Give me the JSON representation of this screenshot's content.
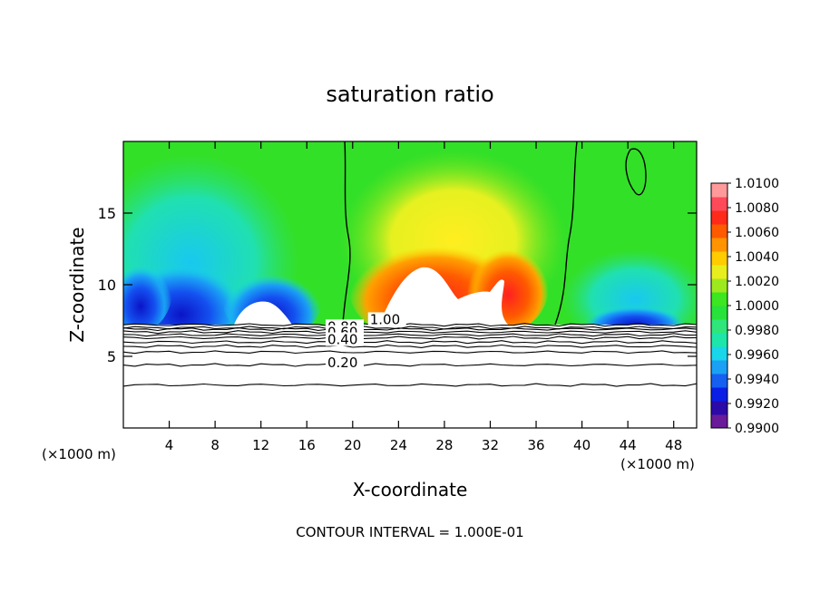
{
  "chart_data": {
    "type": "heatmap",
    "title": "saturation ratio",
    "xlabel": "X-coordinate",
    "ylabel": "Z-coordinate",
    "x_unit_left": "(×1000 m)",
    "x_unit_right": "(×1000 m)",
    "footer": "CONTOUR INTERVAL = 1.000E-01",
    "xlim": [
      0,
      50
    ],
    "ylim": [
      0,
      20
    ],
    "x_ticks": [
      4,
      8,
      12,
      16,
      20,
      24,
      28,
      32,
      36,
      40,
      44,
      48
    ],
    "y_ticks": [
      5,
      10,
      15
    ],
    "grid": false,
    "colorbar": {
      "placement": "right",
      "min": 0.99,
      "max": 1.01,
      "labels": [
        "1.0100",
        "1.0080",
        "1.0060",
        "1.0040",
        "1.0020",
        "1.0000",
        "0.9980",
        "0.9960",
        "0.9940",
        "0.9920",
        "0.9900"
      ],
      "colors": [
        "#6a1b9a",
        "#2b0aa8",
        "#0a1ee6",
        "#1560f0",
        "#1aa0f5",
        "#19d6ea",
        "#1ee6a8",
        "#2ee67a",
        "#26e23a",
        "#3ce620",
        "#9ee81e",
        "#e8ee1e",
        "#ffcc00",
        "#ff9400",
        "#ff5a00",
        "#ff2a1a",
        "#ff4a5a",
        "#ff9a9a"
      ]
    },
    "contour_labels": [
      "1.00",
      "0.80",
      "0.60",
      "0.40",
      "0.20"
    ],
    "contour_levels": [
      {
        "level": 1.0,
        "z": 7.2
      },
      {
        "level": 0.8,
        "z": 6.9
      },
      {
        "level": 0.6,
        "z": 6.5
      },
      {
        "level": 0.4,
        "z": 6.0
      },
      {
        "level": 0.2,
        "z": 4.4
      },
      {
        "level": 0.1,
        "z": 3.0
      }
    ],
    "extra_contour_z": [
      7.0,
      6.7,
      6.3,
      5.7,
      5.3
    ]
  }
}
